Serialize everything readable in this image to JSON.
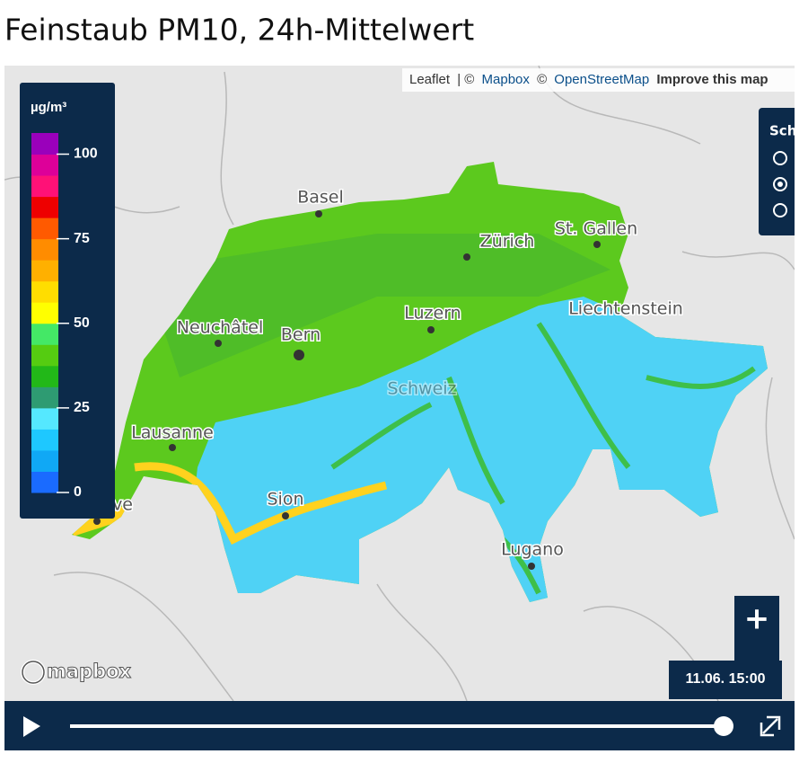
{
  "title": "Feinstaub PM10, 24h-Mittelwert",
  "attribution": [
    "Leaflet",
    "| ©",
    "Mapbox",
    "©",
    "OpenStreetMap",
    "Improve this map"
  ],
  "legend": {
    "unit": "µg/m³",
    "lim": [
      0,
      106.25
    ],
    "ticks": [
      0,
      25,
      50,
      75,
      100
    ],
    "colors": [
      "#1a6bff",
      "#10a8f5",
      "#1ec8ff",
      "#55e8ff",
      "#2e9b72",
      "#22b818",
      "#55cc11",
      "#44e866",
      "#ffff00",
      "#ffdd00",
      "#ffb000",
      "#ff8c00",
      "#ff5a00",
      "#ee0000",
      "#ff1177",
      "#dd0099",
      "#9a00bb"
    ]
  },
  "places": [
    "Basel",
    "Zürich",
    "St. Gallen",
    "Liechtenstein",
    "Neuchâtel",
    "Bern",
    "Luzern",
    "Schweiz",
    "Lausanne",
    "Genève",
    "Sion",
    "Lugano"
  ],
  "layer_control": {
    "label": "Sch"
  },
  "logo": "mapbox",
  "zoom_in": "+",
  "time": "11.06. 15:00"
}
